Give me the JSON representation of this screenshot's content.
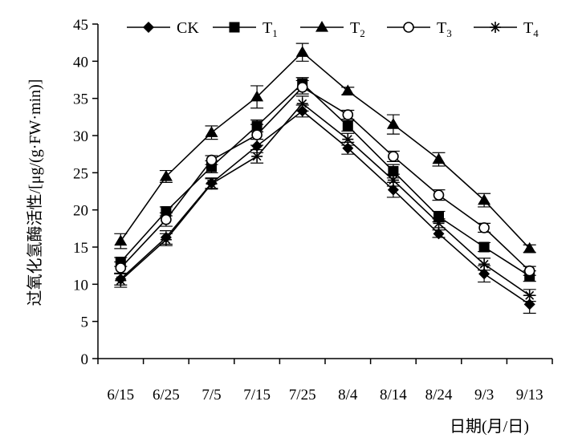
{
  "chart_data": {
    "type": "line",
    "title": "",
    "xlabel": "日期(月/日)",
    "ylabel": "过氧化氢酶活性/[μg/(g·FW·min)]",
    "ylim": [
      0,
      45
    ],
    "yticks": [
      0,
      5,
      10,
      15,
      20,
      25,
      30,
      35,
      40,
      45
    ],
    "grid": false,
    "legend_position": "top",
    "categories": [
      "6/15",
      "6/25",
      "7/5",
      "7/15",
      "7/25",
      "8/4",
      "8/14",
      "8/24",
      "9/3",
      "9/13"
    ],
    "series": [
      {
        "name": "CK",
        "legend_main": "CK",
        "legend_sub": "",
        "marker": "diamond-filled",
        "values": [
          10.7,
          16.3,
          23.6,
          28.6,
          33.3,
          28.3,
          22.7,
          16.8,
          11.4,
          7.3
        ],
        "errors": [
          0.8,
          0.9,
          0.7,
          0.9,
          0.8,
          0.8,
          1.0,
          0.5,
          1.1,
          1.2
        ]
      },
      {
        "name": "T₁",
        "legend_main": "T",
        "legend_sub": "1",
        "marker": "square-filled",
        "values": [
          13.0,
          19.8,
          25.8,
          31.3,
          37.0,
          31.3,
          25.2,
          19.1,
          15.0,
          11.1
        ],
        "errors": [
          0.6,
          0.6,
          0.8,
          0.8,
          0.8,
          0.7,
          0.9,
          0.7,
          0.6,
          0.7
        ]
      },
      {
        "name": "T₂",
        "legend_main": "T",
        "legend_sub": "2",
        "marker": "triangle-filled",
        "values": [
          15.8,
          24.5,
          30.4,
          35.2,
          41.2,
          36.0,
          31.5,
          26.8,
          21.3,
          14.8
        ],
        "errors": [
          1.0,
          0.8,
          0.9,
          1.5,
          1.2,
          0.5,
          1.3,
          0.9,
          0.9,
          0.5
        ]
      },
      {
        "name": "T₃",
        "legend_main": "T",
        "legend_sub": "3",
        "marker": "circle-open",
        "values": [
          12.2,
          18.7,
          26.7,
          30.1,
          36.5,
          32.8,
          27.2,
          22.0,
          17.6,
          11.8
        ],
        "errors": [
          0.8,
          0.9,
          0.6,
          1.4,
          0.9,
          0.6,
          0.7,
          0.7,
          0.6,
          0.6
        ]
      },
      {
        "name": "T₄",
        "legend_main": "T",
        "legend_sub": "4",
        "marker": "asterisk",
        "values": [
          10.5,
          16.0,
          23.5,
          27.2,
          34.3,
          29.5,
          24.0,
          18.2,
          12.7,
          8.5
        ],
        "errors": [
          0.9,
          0.8,
          0.7,
          0.9,
          1.0,
          0.8,
          0.8,
          0.6,
          0.8,
          0.8
        ]
      }
    ]
  }
}
